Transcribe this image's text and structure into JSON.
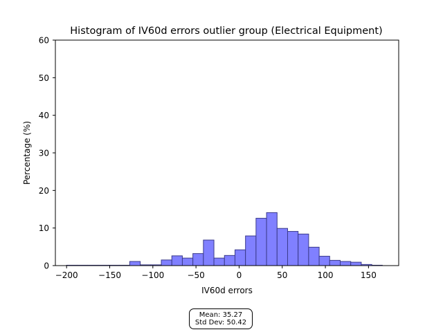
{
  "chart_data": {
    "type": "bar",
    "title": "Histogram of IV60d errors outlier group (Electrical Equipment)",
    "xlabel": "IV60d errors",
    "ylabel": "Percentage (%)",
    "xlim": [
      -213,
      185
    ],
    "ylim": [
      0,
      60
    ],
    "xticks": [
      -200,
      -150,
      -100,
      -50,
      0,
      50,
      100,
      150
    ],
    "xtick_labels": [
      "−200",
      "−150",
      "−100",
      "−50",
      "0",
      "50",
      "100",
      "150"
    ],
    "yticks": [
      0,
      10,
      20,
      30,
      40,
      50,
      60
    ],
    "ytick_labels": [
      "0",
      "10",
      "20",
      "30",
      "40",
      "50",
      "60"
    ],
    "bar_color": "#8080ff",
    "edge_color": "#3a3a8a",
    "bins": [
      {
        "x0": -200.0,
        "x1": -187.8,
        "value": 0.1
      },
      {
        "x0": -187.8,
        "x1": -175.6,
        "value": 0.1
      },
      {
        "x0": -175.6,
        "x1": -163.4,
        "value": 0.1
      },
      {
        "x0": -163.4,
        "x1": -151.2,
        "value": 0.1
      },
      {
        "x0": -151.2,
        "x1": -139.0,
        "value": 0.1
      },
      {
        "x0": -139.0,
        "x1": -126.8,
        "value": 0.1
      },
      {
        "x0": -126.8,
        "x1": -114.6,
        "value": 1.1
      },
      {
        "x0": -114.6,
        "x1": -102.4,
        "value": 0.2
      },
      {
        "x0": -102.4,
        "x1": -90.2,
        "value": 0.2
      },
      {
        "x0": -90.2,
        "x1": -78.0,
        "value": 1.5
      },
      {
        "x0": -78.0,
        "x1": -65.8,
        "value": 2.6
      },
      {
        "x0": -65.8,
        "x1": -53.6,
        "value": 2.0
      },
      {
        "x0": -53.6,
        "x1": -41.4,
        "value": 3.2
      },
      {
        "x0": -41.4,
        "x1": -29.2,
        "value": 6.8
      },
      {
        "x0": -29.2,
        "x1": -17.0,
        "value": 2.0
      },
      {
        "x0": -17.0,
        "x1": -4.8,
        "value": 2.7
      },
      {
        "x0": -4.8,
        "x1": 7.4,
        "value": 4.2
      },
      {
        "x0": 7.4,
        "x1": 19.6,
        "value": 7.9
      },
      {
        "x0": 19.6,
        "x1": 31.8,
        "value": 12.6
      },
      {
        "x0": 31.8,
        "x1": 44.0,
        "value": 14.1
      },
      {
        "x0": 44.0,
        "x1": 56.2,
        "value": 9.9
      },
      {
        "x0": 56.2,
        "x1": 68.4,
        "value": 9.1
      },
      {
        "x0": 68.4,
        "x1": 80.6,
        "value": 8.4
      },
      {
        "x0": 80.6,
        "x1": 92.8,
        "value": 4.9
      },
      {
        "x0": 92.8,
        "x1": 105.0,
        "value": 2.5
      },
      {
        "x0": 105.0,
        "x1": 117.2,
        "value": 1.4
      },
      {
        "x0": 117.2,
        "x1": 129.4,
        "value": 1.1
      },
      {
        "x0": 129.4,
        "x1": 141.6,
        "value": 0.9
      },
      {
        "x0": 141.6,
        "x1": 153.8,
        "value": 0.3
      },
      {
        "x0": 153.8,
        "x1": 166.0,
        "value": 0.1
      }
    ],
    "stats": {
      "mean_label": "Mean: 35.27",
      "std_label": "Std Dev: 50.42"
    }
  }
}
